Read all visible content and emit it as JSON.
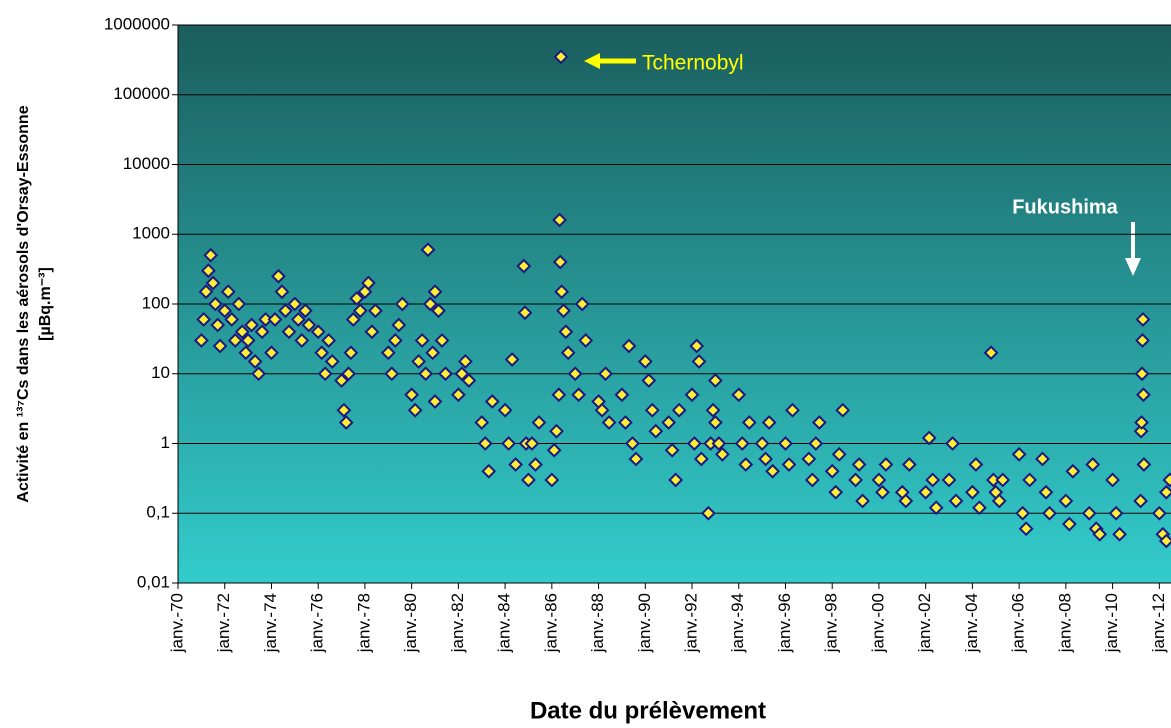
{
  "chart_data": {
    "type": "scatter",
    "xlabel": "Date du prélèvement",
    "ylabel": [
      "Activité en ¹³⁷Cs dans les aérosols d'Orsay-Essonne",
      "[µBq.m⁻³]"
    ],
    "log_y": true,
    "grid": true,
    "background": [
      "#1b5d5d",
      "#33cccc"
    ],
    "annotations": [
      {
        "text": "Tchernobyl",
        "color": "#ffff00"
      },
      {
        "text": "Fukushima",
        "color": "#ffffff"
      }
    ],
    "xlim": [
      1970,
      2012.5
    ],
    "ylim": [
      0.01,
      1000000
    ],
    "xticks": [
      {
        "value": 1970,
        "label": "janv.-70"
      },
      {
        "value": 1972,
        "label": "janv.-72"
      },
      {
        "value": 1974,
        "label": "janv.-74"
      },
      {
        "value": 1976,
        "label": "janv.-76"
      },
      {
        "value": 1978,
        "label": "janv.-78"
      },
      {
        "value": 1980,
        "label": "janv.-80"
      },
      {
        "value": 1982,
        "label": "janv.-82"
      },
      {
        "value": 1984,
        "label": "janv.-84"
      },
      {
        "value": 1986,
        "label": "janv.-86"
      },
      {
        "value": 1988,
        "label": "janv.-88"
      },
      {
        "value": 1990,
        "label": "janv.-90"
      },
      {
        "value": 1992,
        "label": "janv.-92"
      },
      {
        "value": 1994,
        "label": "janv.-94"
      },
      {
        "value": 1996,
        "label": "janv.-96"
      },
      {
        "value": 1998,
        "label": "janv.-98"
      },
      {
        "value": 2000,
        "label": "janv.-00"
      },
      {
        "value": 2002,
        "label": "janv.-02"
      },
      {
        "value": 2004,
        "label": "janv.-04"
      },
      {
        "value": 2006,
        "label": "janv.-06"
      },
      {
        "value": 2008,
        "label": "janv.-08"
      },
      {
        "value": 2010,
        "label": "janv.-10"
      },
      {
        "value": 2012,
        "label": "janv.-12"
      }
    ],
    "yticks": [
      {
        "value": 0.01,
        "label": "0,01"
      },
      {
        "value": 0.1,
        "label": "0,1"
      },
      1,
      10,
      100,
      1000,
      10000,
      100000,
      1000000
    ],
    "series": [
      {
        "color": "#ffee33",
        "edge": "#1a1a80",
        "x": [
          1971.0,
          1971.1,
          1971.2,
          1971.3,
          1971.4,
          1971.5,
          1971.6,
          1971.7,
          1971.8,
          1972.0,
          1972.15,
          1972.3,
          1972.45,
          1972.6,
          1972.75,
          1972.9,
          1973.0,
          1973.15,
          1973.3,
          1973.45,
          1973.6,
          1973.75,
          1974.0,
          1974.15,
          1974.3,
          1974.45,
          1974.6,
          1974.75,
          1975.0,
          1975.15,
          1975.3,
          1975.45,
          1975.6,
          1976.0,
          1976.15,
          1976.3,
          1976.45,
          1976.6,
          1977.0,
          1977.1,
          1977.2,
          1977.3,
          1977.4,
          1977.5,
          1977.65,
          1977.8,
          1978.0,
          1978.15,
          1978.3,
          1978.45,
          1979.0,
          1979.15,
          1979.3,
          1979.45,
          1979.6,
          1980.0,
          1980.15,
          1980.3,
          1980.45,
          1980.6,
          1980.7,
          1980.8,
          1980.9,
          1981.0,
          1981.0,
          1981.15,
          1981.3,
          1981.45,
          1982.0,
          1982.15,
          1982.3,
          1982.45,
          1983.0,
          1983.15,
          1983.3,
          1983.45,
          1984.0,
          1984.15,
          1984.3,
          1984.45,
          1984.8,
          1984.85,
          1984.9,
          1985.0,
          1985.15,
          1985.3,
          1985.45,
          1986.0,
          1986.1,
          1986.2,
          1986.3,
          1986.33,
          1986.36,
          1986.39,
          1986.42,
          1986.5,
          1986.6,
          1986.7,
          1987.0,
          1987.15,
          1987.3,
          1987.45,
          1988.0,
          1988.15,
          1988.3,
          1988.45,
          1989.0,
          1989.15,
          1989.3,
          1989.45,
          1989.6,
          1990.0,
          1990.15,
          1990.3,
          1990.45,
          1991.0,
          1991.15,
          1991.3,
          1991.45,
          1992.0,
          1992.1,
          1992.2,
          1992.3,
          1992.4,
          1992.7,
          1992.8,
          1992.9,
          1993.0,
          1993.0,
          1993.15,
          1993.3,
          1994.0,
          1994.15,
          1994.3,
          1994.45,
          1995.0,
          1995.15,
          1995.3,
          1995.45,
          1996.0,
          1996.15,
          1996.3,
          1997.0,
          1997.15,
          1997.3,
          1997.45,
          1998.0,
          1998.15,
          1998.3,
          1998.45,
          1999.0,
          1999.15,
          1999.3,
          2000.0,
          2000.15,
          2000.3,
          2001.0,
          2001.15,
          2001.3,
          2002.0,
          2002.15,
          2002.3,
          2002.45,
          2003.0,
          2003.15,
          2003.3,
          2004.0,
          2004.15,
          2004.3,
          2004.8,
          2004.9,
          2005.0,
          2005.15,
          2005.3,
          2006.0,
          2006.15,
          2006.3,
          2006.45,
          2007.0,
          2007.15,
          2007.3,
          2008.0,
          2008.15,
          2008.3,
          2009.0,
          2009.15,
          2009.3,
          2009.45,
          2010.0,
          2010.15,
          2010.3,
          2011.2,
          2011.22,
          2011.24,
          2011.26,
          2011.28,
          2011.3,
          2011.32,
          2011.34,
          2012.0,
          2012.15,
          2012.3,
          2012.45,
          2012.3
        ],
        "values": [
          30,
          60,
          150,
          300,
          500,
          200,
          100,
          50,
          25,
          80,
          150,
          60,
          30,
          100,
          40,
          20,
          30,
          50,
          15,
          10,
          40,
          60,
          20,
          60,
          250,
          150,
          80,
          40,
          100,
          60,
          30,
          80,
          50,
          40,
          20,
          10,
          30,
          15,
          8,
          3,
          2,
          10,
          20,
          60,
          120,
          80,
          150,
          200,
          40,
          80,
          20,
          10,
          30,
          50,
          100,
          5,
          3,
          15,
          30,
          10,
          600,
          100,
          20,
          4,
          150,
          80,
          30,
          10,
          5,
          10,
          15,
          8,
          2,
          1,
          0.4,
          4,
          3,
          1,
          16,
          0.5,
          350,
          75,
          1,
          0.3,
          1,
          0.5,
          2,
          0.3,
          0.8,
          1.5,
          5,
          1600,
          400,
          350000,
          150,
          80,
          40,
          20,
          10,
          5,
          100,
          30,
          4,
          3,
          10,
          2,
          5,
          2,
          25,
          1,
          0.6,
          15,
          8,
          3,
          1.5,
          2,
          0.8,
          0.3,
          3,
          5,
          1,
          25,
          15,
          0.6,
          0.1,
          1,
          3,
          8,
          2,
          1,
          0.7,
          5,
          1,
          0.5,
          2,
          1,
          0.6,
          2,
          0.4,
          1,
          0.5,
          3,
          0.6,
          0.3,
          1,
          2,
          0.4,
          0.2,
          0.7,
          3,
          0.3,
          0.5,
          0.15,
          0.3,
          0.2,
          0.5,
          0.2,
          0.15,
          0.5,
          0.2,
          1.2,
          0.3,
          0.12,
          0.3,
          1,
          0.15,
          0.2,
          0.5,
          0.12,
          20,
          0.3,
          0.2,
          0.15,
          0.3,
          0.7,
          0.1,
          0.06,
          0.3,
          0.6,
          0.2,
          0.1,
          0.15,
          0.07,
          0.4,
          0.1,
          0.5,
          0.06,
          0.05,
          0.3,
          0.1,
          0.05,
          0.15,
          1.5,
          2,
          10,
          30,
          60,
          5,
          0.5,
          0.1,
          0.05,
          0.2,
          0.3,
          0.04
        ]
      }
    ]
  }
}
